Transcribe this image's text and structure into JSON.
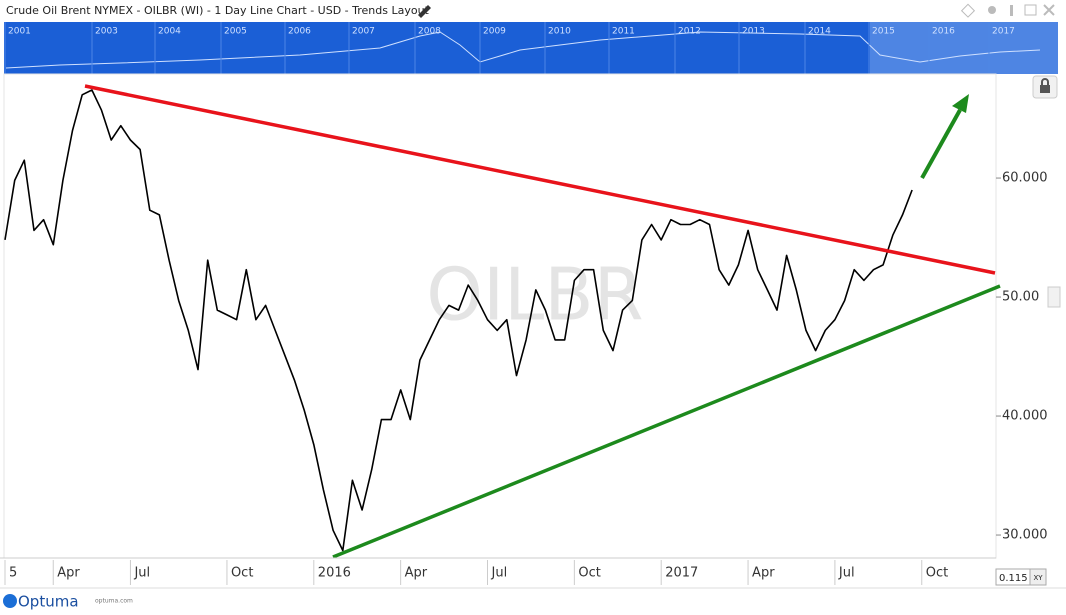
{
  "header": {
    "title": "Crude Oil Brent NYMEX - OILBR (WI) - 1 Day Line Chart - USD - Trends Layout"
  },
  "navigator": {
    "labels": [
      "2001",
      "2003",
      "2004",
      "2005",
      "2006",
      "2007",
      "2008",
      "2009",
      "2010",
      "2011",
      "2012",
      "2013",
      "2014",
      "2015",
      "2016",
      "2017"
    ]
  },
  "chart_data": {
    "type": "line",
    "watermark": "OILBR",
    "categories": [
      "5",
      null,
      null,
      null,
      null,
      "Apr",
      null,
      null,
      null,
      null,
      null,
      null,
      null,
      "Jul",
      null,
      null,
      null,
      null,
      null,
      null,
      null,
      null,
      null,
      "Oct",
      null,
      null,
      null,
      null,
      null,
      null,
      null,
      null,
      "2016",
      null,
      null,
      null,
      null,
      null,
      null,
      null,
      null,
      "Apr",
      null,
      null,
      null,
      null,
      null,
      null,
      null,
      null,
      "Jul",
      null,
      null,
      null,
      null,
      null,
      null,
      null,
      null,
      "Oct",
      null,
      null,
      null,
      null,
      null,
      null,
      null,
      null,
      "2017",
      null,
      null,
      null,
      null,
      null,
      null,
      null,
      null,
      "Apr",
      null,
      null,
      null,
      null,
      null,
      null,
      null,
      null,
      "Jul",
      null,
      null,
      null,
      null,
      null,
      null,
      null,
      null,
      "Oct",
      null,
      null,
      null,
      null,
      null,
      null,
      null,
      null
    ],
    "series": [
      {
        "name": "OILBR",
        "color": "#000000",
        "values": [
          54.8,
          59.8,
          61.5,
          55.6,
          56.5,
          54.4,
          59.8,
          64,
          67,
          67.4,
          65.7,
          63.2,
          64.4,
          63.2,
          62.4,
          57.3,
          56.9,
          53.1,
          49.7,
          47.2,
          43.9,
          53.1,
          48.9,
          48.5,
          48.1,
          52.3,
          48.1,
          49.3,
          47.2,
          45.1,
          43,
          40.5,
          37.6,
          33.8,
          30.4,
          28.7,
          34.6,
          32.1,
          35.5,
          39.7,
          39.7,
          42.2,
          39.7,
          44.7,
          46.4,
          48.1,
          49.3,
          48.9,
          51,
          49.7,
          48.1,
          47.2,
          48.1,
          43.4,
          46.4,
          50.6,
          48.9,
          46.4,
          46.4,
          51.4,
          52.3,
          52.3,
          47.2,
          45.5,
          48.9,
          49.7,
          54.8,
          56.1,
          54.8,
          56.5,
          56.1,
          56.1,
          56.5,
          56.1,
          52.3,
          51,
          52.7,
          55.6,
          52.3,
          50.6,
          48.9,
          53.5,
          50.6,
          47.2,
          45.5,
          47.2,
          48.1,
          49.7,
          52.3,
          51.4,
          52.3,
          52.7,
          55.2,
          56.9,
          59,
          null,
          null,
          null,
          null,
          null,
          null,
          null,
          null,
          null
        ]
      }
    ],
    "ylim": [
      28.07,
      68.24
    ],
    "yticks": [
      {
        "value": 30,
        "label": "30.000"
      },
      {
        "value": 40,
        "label": "40.000"
      },
      {
        "value": 50,
        "label": "50.00"
      },
      {
        "value": 60,
        "label": "60.000"
      }
    ]
  },
  "footer": {
    "scale": "0.115",
    "mode": "XY",
    "brand": "Optuma",
    "site": "optuma.com"
  }
}
